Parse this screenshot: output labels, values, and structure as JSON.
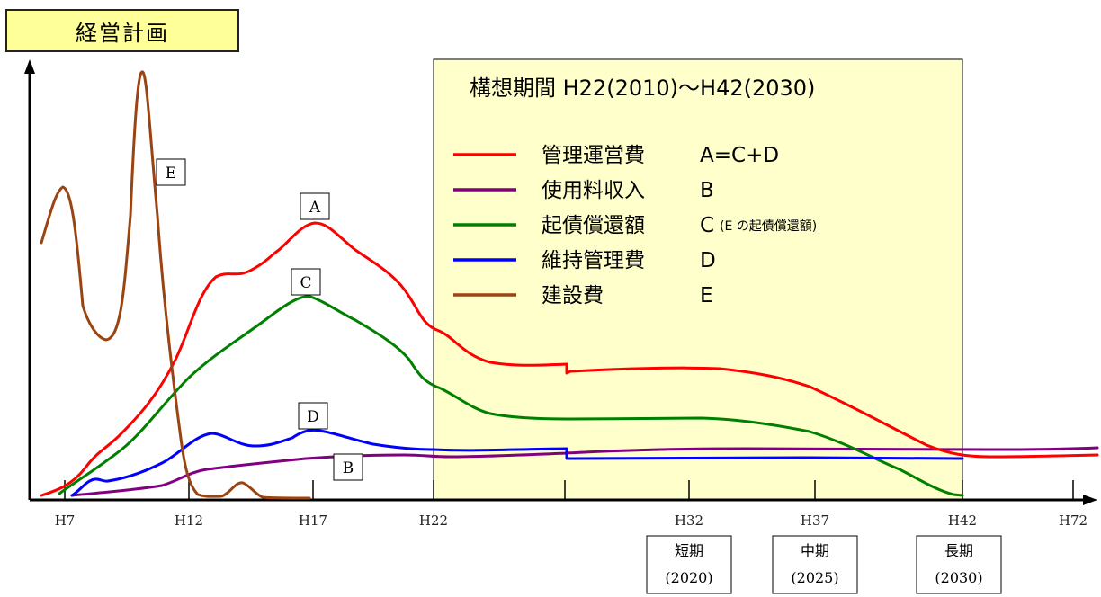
{
  "title": "経営計画",
  "period_label": "構想期間 H22(2010)～H42(2030)",
  "colors": {
    "A": "#ff0000",
    "B": "#800080",
    "C": "#008000",
    "D": "#0000ff",
    "E": "#994411",
    "period_fill": "#ffffcc",
    "title_fill": "#ffff99"
  },
  "chart_data": {
    "type": "line",
    "x_ticks": [
      "H7",
      "H12",
      "H17",
      "H22",
      "H32",
      "H37",
      "H42",
      "H72"
    ],
    "legend": [
      {
        "key": "A",
        "name": "管理運営費",
        "code": "A=C+D",
        "note": ""
      },
      {
        "key": "B",
        "name": "使用料収入",
        "code": "B",
        "note": ""
      },
      {
        "key": "C",
        "name": "起債償還額",
        "code": "C",
        "note": "(E の起債償還額)"
      },
      {
        "key": "D",
        "name": "維持管理費",
        "code": "D",
        "note": ""
      },
      {
        "key": "E",
        "name": "建設費",
        "code": "E",
        "note": ""
      }
    ],
    "series_labels": [
      "A",
      "B",
      "C",
      "D",
      "E"
    ],
    "terms": [
      {
        "name": "短期",
        "year": "(2020)"
      },
      {
        "name": "中期",
        "year": "(2025)"
      },
      {
        "name": "長期",
        "year": "(2030)"
      }
    ],
    "y_axis": "unlabeled, relative magnitude"
  }
}
